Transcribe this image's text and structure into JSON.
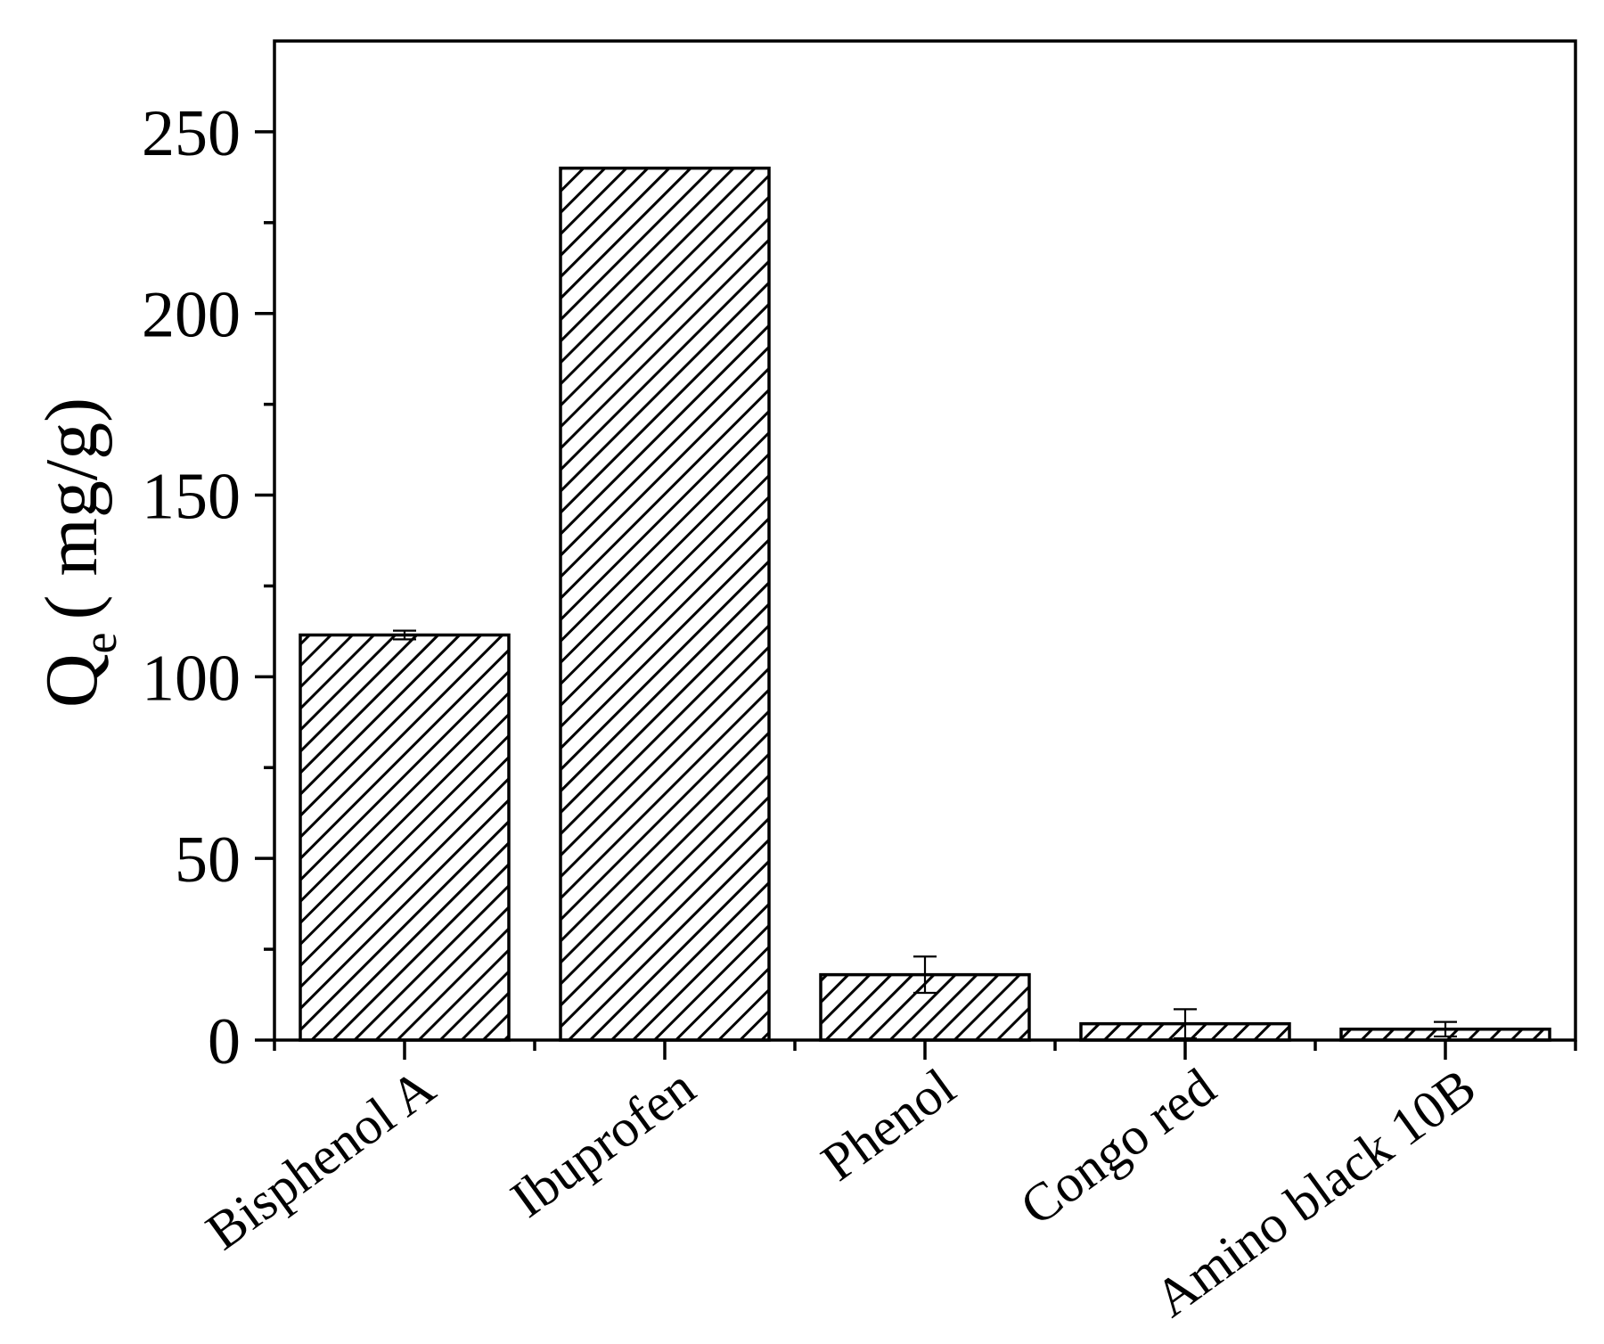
{
  "chart_data": {
    "type": "bar",
    "title": "",
    "xlabel": "",
    "ylabel": {
      "main": "Q",
      "subscript": "e",
      "unit": "( mg/g)"
    },
    "ylim": [
      0,
      275
    ],
    "yticks": [
      0,
      50,
      100,
      150,
      200,
      250
    ],
    "yminor_step": 25,
    "grid": false,
    "legend": "none",
    "categories": [
      "Bisphenol A",
      "Ibuprofen",
      "Phenol",
      "Congo red",
      "Amino black 10B"
    ],
    "values": [
      111.5,
      240,
      18,
      4.5,
      3
    ],
    "errors": [
      1.2,
      0,
      5,
      4,
      2
    ],
    "bar_fill": "diagonal-hatch",
    "colors": {
      "bar_stroke": "#000000",
      "hatch": "#000000",
      "background": "#ffffff"
    }
  }
}
